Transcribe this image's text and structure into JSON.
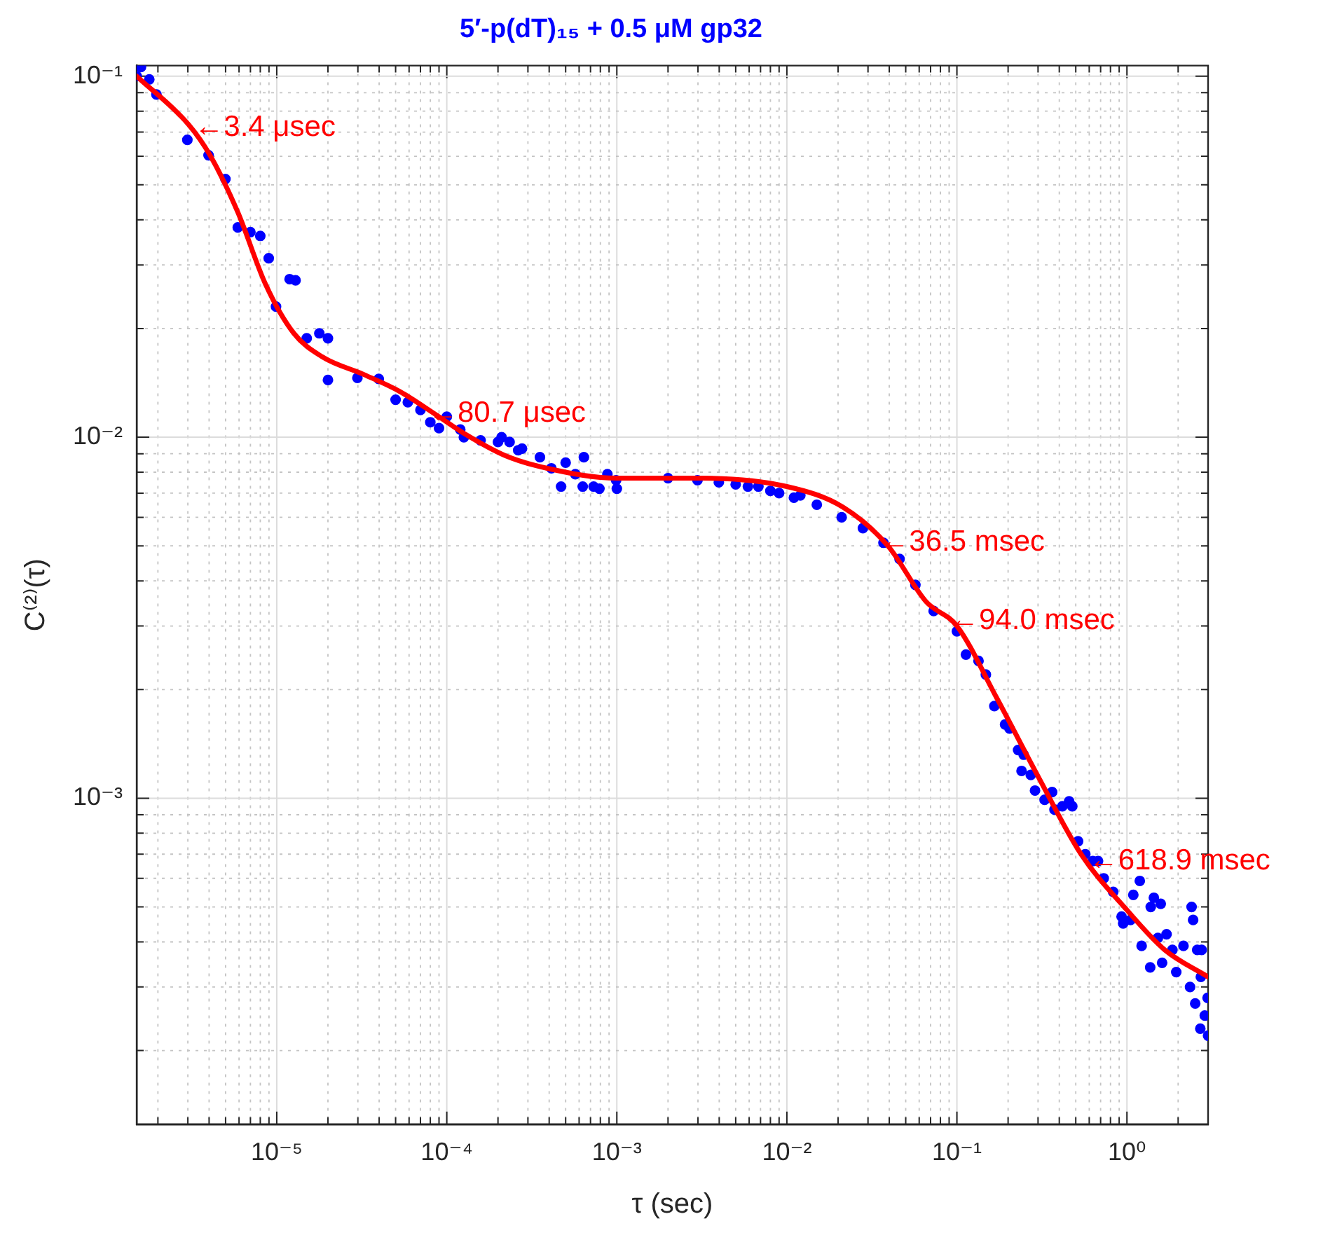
{
  "chart_data": {
    "type": "scatter",
    "title": "5′-p(dT)₁₅ + 0.5 μM gp32",
    "xlabel": "τ (sec)",
    "ylabel": "C⁽²⁾(τ)",
    "log": "xy",
    "grid": true,
    "legend": false,
    "xlim": [
      1.5e-06,
      3
    ],
    "ylim": [
      0.000125,
      0.107
    ],
    "xticks": [
      {
        "value": 2e-06,
        "label": null
      },
      {
        "value": 3e-06,
        "label": null
      },
      {
        "value": 4e-06,
        "label": null
      },
      {
        "value": 5e-06,
        "label": null
      },
      {
        "value": 6e-06,
        "label": null
      },
      {
        "value": 7e-06,
        "label": null
      },
      {
        "value": 8e-06,
        "label": null
      },
      {
        "value": 9e-06,
        "label": null
      },
      {
        "value": 1e-05,
        "label": "10⁻⁵"
      },
      {
        "value": 2e-05,
        "label": null
      },
      {
        "value": 3e-05,
        "label": null
      },
      {
        "value": 4e-05,
        "label": null
      },
      {
        "value": 5e-05,
        "label": null
      },
      {
        "value": 6e-05,
        "label": null
      },
      {
        "value": 7e-05,
        "label": null
      },
      {
        "value": 8e-05,
        "label": null
      },
      {
        "value": 9e-05,
        "label": null
      },
      {
        "value": 0.0001,
        "label": "10⁻⁴"
      },
      {
        "value": 0.0002,
        "label": null
      },
      {
        "value": 0.0003,
        "label": null
      },
      {
        "value": 0.0004,
        "label": null
      },
      {
        "value": 0.0005,
        "label": null
      },
      {
        "value": 0.0006,
        "label": null
      },
      {
        "value": 0.0007,
        "label": null
      },
      {
        "value": 0.0008,
        "label": null
      },
      {
        "value": 0.0009,
        "label": null
      },
      {
        "value": 0.001,
        "label": "10⁻³"
      },
      {
        "value": 0.002,
        "label": null
      },
      {
        "value": 0.003,
        "label": null
      },
      {
        "value": 0.004,
        "label": null
      },
      {
        "value": 0.005,
        "label": null
      },
      {
        "value": 0.006,
        "label": null
      },
      {
        "value": 0.007,
        "label": null
      },
      {
        "value": 0.008,
        "label": null
      },
      {
        "value": 0.009,
        "label": null
      },
      {
        "value": 0.01,
        "label": "10⁻²"
      },
      {
        "value": 0.02,
        "label": null
      },
      {
        "value": 0.03,
        "label": null
      },
      {
        "value": 0.04,
        "label": null
      },
      {
        "value": 0.05,
        "label": null
      },
      {
        "value": 0.06,
        "label": null
      },
      {
        "value": 0.07,
        "label": null
      },
      {
        "value": 0.08,
        "label": null
      },
      {
        "value": 0.09,
        "label": null
      },
      {
        "value": 0.1,
        "label": "10⁻¹"
      },
      {
        "value": 0.2,
        "label": null
      },
      {
        "value": 0.3,
        "label": null
      },
      {
        "value": 0.4,
        "label": null
      },
      {
        "value": 0.5,
        "label": null
      },
      {
        "value": 0.6,
        "label": null
      },
      {
        "value": 0.7,
        "label": null
      },
      {
        "value": 0.8,
        "label": null
      },
      {
        "value": 0.9,
        "label": null
      },
      {
        "value": 1,
        "label": "10⁰"
      },
      {
        "value": 2,
        "label": null
      },
      {
        "value": 3,
        "label": null
      }
    ],
    "yticks": [
      {
        "value": 0.0002,
        "label": null
      },
      {
        "value": 0.0003,
        "label": null
      },
      {
        "value": 0.0004,
        "label": null
      },
      {
        "value": 0.0005,
        "label": null
      },
      {
        "value": 0.0006,
        "label": null
      },
      {
        "value": 0.0007,
        "label": null
      },
      {
        "value": 0.0008,
        "label": null
      },
      {
        "value": 0.0009,
        "label": null
      },
      {
        "value": 0.001,
        "label": "10⁻³"
      },
      {
        "value": 0.002,
        "label": null
      },
      {
        "value": 0.003,
        "label": null
      },
      {
        "value": 0.004,
        "label": null
      },
      {
        "value": 0.005,
        "label": null
      },
      {
        "value": 0.006,
        "label": null
      },
      {
        "value": 0.007,
        "label": null
      },
      {
        "value": 0.008,
        "label": null
      },
      {
        "value": 0.009,
        "label": null
      },
      {
        "value": 0.01,
        "label": "10⁻²"
      },
      {
        "value": 0.02,
        "label": null
      },
      {
        "value": 0.03,
        "label": null
      },
      {
        "value": 0.04,
        "label": null
      },
      {
        "value": 0.05,
        "label": null
      },
      {
        "value": 0.06,
        "label": null
      },
      {
        "value": 0.07,
        "label": null
      },
      {
        "value": 0.08,
        "label": null
      },
      {
        "value": 0.09,
        "label": null
      },
      {
        "value": 0.1,
        "label": "10⁻¹"
      }
    ],
    "annotations": [
      {
        "text": "←3.4 μsec",
        "x": 3.4e-06,
        "y": 0.072
      },
      {
        "text": "←80.7 μsec",
        "x": 8.07e-05,
        "y": 0.0116
      },
      {
        "text": "←36.5 msec",
        "x": 0.0365,
        "y": 0.0051
      },
      {
        "text": "←94.0 msec",
        "x": 0.094,
        "y": 0.0031
      },
      {
        "text": "←618.9 msec",
        "x": 0.619,
        "y": 0.00067
      }
    ],
    "series": [
      {
        "color": "#0000ff",
        "marker": "circle",
        "x": [
          1.5e-06,
          1.59e-06,
          1.78e-06,
          1.96e-06,
          2.98e-06,
          3.97e-06,
          4.99e-06,
          5.9e-06,
          7e-06,
          8e-06,
          8.97e-06,
          9.9e-06,
          1.19e-05,
          1.29e-05,
          1.5e-05,
          1.78e-05,
          2e-05,
          2e-05,
          2.98e-05,
          3.98e-05,
          5e-05,
          5.9e-05,
          7e-05,
          8e-05,
          9e-05,
          0.0001,
          0.00012,
          0.000126,
          0.000158,
          0.0002,
          0.00021,
          0.000234,
          0.000263,
          0.000277,
          0.000353,
          0.000412,
          0.00047,
          0.0005,
          0.00057,
          0.00063,
          0.00064,
          0.00073,
          0.00079,
          0.00088,
          0.00099,
          0.001,
          0.002,
          0.00298,
          0.00398,
          0.005,
          0.0059,
          0.0068,
          0.008,
          0.009,
          0.011,
          0.012,
          0.015,
          0.021,
          0.028,
          0.037,
          0.046,
          0.057,
          0.073,
          0.1,
          0.113,
          0.134,
          0.148,
          0.166,
          0.192,
          0.204,
          0.229,
          0.24,
          0.247,
          0.272,
          0.288,
          0.328,
          0.363,
          0.375,
          0.417,
          0.457,
          0.477,
          0.516,
          0.569,
          0.63,
          0.676,
          0.73,
          0.83,
          0.93,
          0.95,
          1.05,
          1.09,
          1.19,
          1.22,
          1.37,
          1.38,
          1.44,
          1.52,
          1.58,
          1.61,
          1.71,
          1.85,
          1.95,
          2.15,
          2.35,
          2.4,
          2.45,
          2.52,
          2.59,
          2.7,
          2.72,
          2.75,
          2.87,
          2.98,
          3.0
        ],
        "values": [
          0.1,
          0.106,
          0.098,
          0.089,
          0.0666,
          0.0604,
          0.0519,
          0.0381,
          0.037,
          0.0361,
          0.0313,
          0.023,
          0.0274,
          0.0272,
          0.0188,
          0.0194,
          0.0188,
          0.0144,
          0.0146,
          0.0145,
          0.0127,
          0.0125,
          0.0119,
          0.011,
          0.0106,
          0.0114,
          0.0105,
          0.01,
          0.0098,
          0.0097,
          0.01,
          0.0097,
          0.0092,
          0.0093,
          0.0088,
          0.0082,
          0.0073,
          0.0085,
          0.0079,
          0.0073,
          0.0088,
          0.0073,
          0.0072,
          0.0079,
          0.0076,
          0.0072,
          0.0077,
          0.0076,
          0.0075,
          0.0074,
          0.0073,
          0.0073,
          0.0071,
          0.007,
          0.0068,
          0.0069,
          0.0065,
          0.006,
          0.0056,
          0.0051,
          0.0046,
          0.0039,
          0.0033,
          0.0029,
          0.0025,
          0.0024,
          0.0022,
          0.0018,
          0.0016,
          0.00156,
          0.00136,
          0.00119,
          0.00132,
          0.00116,
          0.00105,
          0.00099,
          0.00104,
          0.00093,
          0.00095,
          0.00098,
          0.00095,
          0.00076,
          0.0007,
          0.00067,
          0.00067,
          0.0006,
          0.00055,
          0.00047,
          0.00045,
          0.00046,
          0.00054,
          0.00059,
          0.00039,
          0.00034,
          0.0005,
          0.00053,
          0.00041,
          0.00051,
          0.00035,
          0.00042,
          0.00038,
          0.00033,
          0.00039,
          0.0003,
          0.0005,
          0.00046,
          0.00027,
          0.00038,
          0.00023,
          0.00032,
          0.00038,
          0.00025,
          0.00028,
          0.00022
        ]
      },
      {
        "type": "line",
        "color": "#ff0000",
        "marker": "none",
        "line_style": "solid",
        "x": [
          1.5e-06,
          3.04e-06,
          4.05e-06,
          5.9e-06,
          8.6e-06,
          1.26e-05,
          1.85e-05,
          3.27e-05,
          5.27e-05,
          8.5e-05,
          0.000124,
          0.00022,
          0.00039,
          0.001,
          0.0032,
          0.01,
          0.0214,
          0.0393,
          0.066,
          0.1,
          0.171,
          0.303,
          0.537,
          1,
          1.67,
          3
        ],
        "values": [
          0.1,
          0.0733,
          0.0604,
          0.042,
          0.0265,
          0.0194,
          0.0167,
          0.0149,
          0.0134,
          0.0116,
          0.0103,
          0.0089,
          0.0082,
          0.0077,
          0.0077,
          0.0073,
          0.0064,
          0.005,
          0.0035,
          0.003,
          0.0019,
          0.00114,
          0.0007,
          0.00049,
          0.00038,
          0.00032
        ]
      }
    ]
  }
}
